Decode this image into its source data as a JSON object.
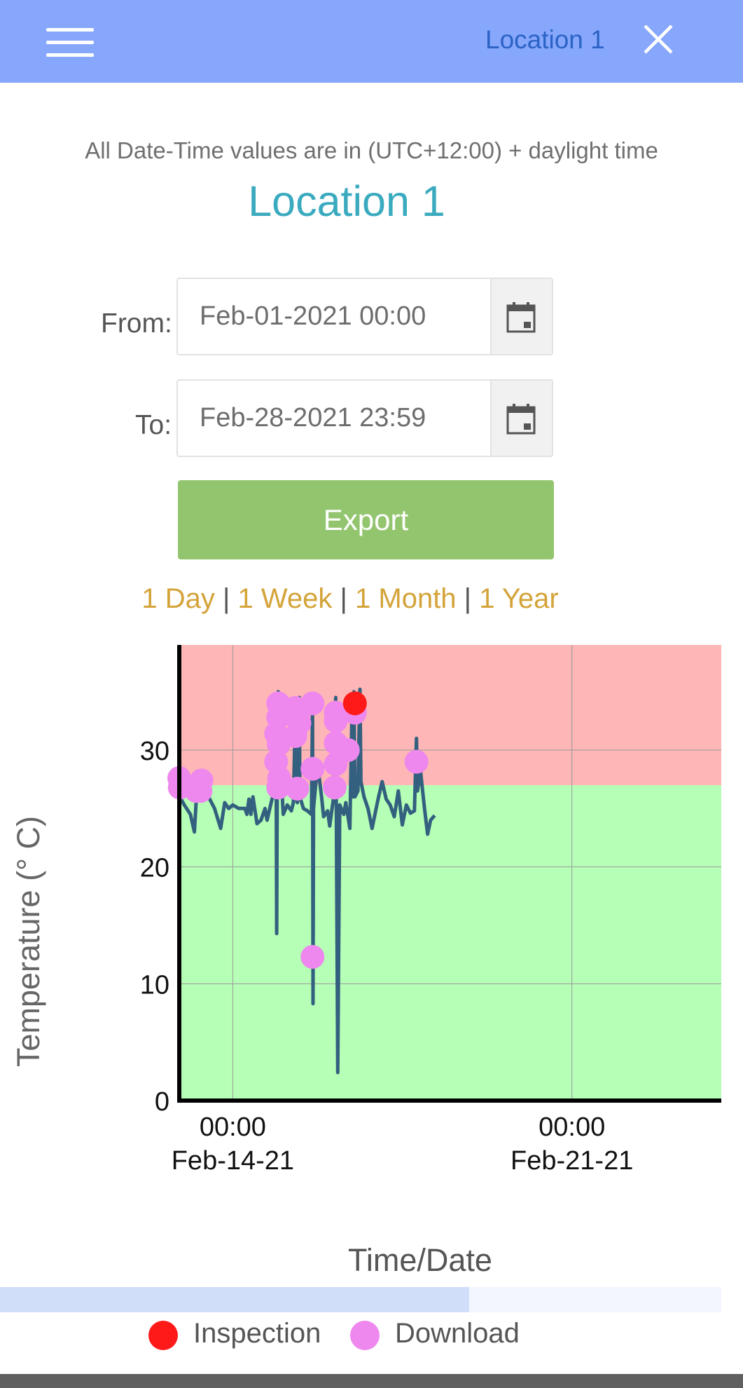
{
  "header": {
    "title": "Location 1",
    "menu_icon": "hamburger-menu-icon",
    "close_icon": "close-icon",
    "background": "#86a7fb"
  },
  "timezone_note": "All Date-Time values are in (UTC+12:00) + daylight time",
  "page_title": "Location 1",
  "filters": {
    "from_label": "From:",
    "from_value": "Feb-01-2021 00:00",
    "to_label": "To:",
    "to_value": "Feb-28-2021 23:59",
    "calendar_icon": "calendar-icon"
  },
  "export_label": "Export",
  "range_options": [
    "1 Day",
    "1 Week",
    "1 Month",
    "1 Year"
  ],
  "range_separator": "|",
  "colors": {
    "accent": "#3aaabf",
    "export_button": "#93c56f",
    "range_links": "#d4a339",
    "alarm_zone": "#ffb6b6",
    "ok_zone": "#b6ffb6",
    "series_line": "#33607f",
    "inspection": "#ff1a1a",
    "download": "#ee88ee"
  },
  "chart_data": {
    "type": "line",
    "ylabel": "Temperature (° C)",
    "xlabel": "Time/Date",
    "ylim": [
      0,
      39
    ],
    "yticks": [
      0,
      10,
      20,
      30
    ],
    "xlim": [
      "2021-02-12T21:30",
      "2021-02-24T02:00"
    ],
    "xticks": [
      {
        "value": "2021-02-14T00:00",
        "time": "00:00",
        "date": "Feb-14-21"
      },
      {
        "value": "2021-02-21T00:00",
        "time": "00:00",
        "date": "Feb-21-21"
      }
    ],
    "grid": true,
    "threshold_bands": [
      {
        "from": 27,
        "to": 39,
        "meaning": "above limit",
        "color": "#ffb6b6"
      },
      {
        "from": 0,
        "to": 27,
        "meaning": "within limit",
        "color": "#b6ffb6"
      }
    ],
    "series": [
      {
        "points": [
          [
            "2021-02-12T21:30",
            34
          ],
          [
            "2021-02-12T21:45",
            26
          ],
          [
            "2021-02-13T00:00",
            25.3
          ],
          [
            "2021-02-13T03:00",
            24.5
          ],
          [
            "2021-02-13T05:00",
            23
          ],
          [
            "2021-02-13T06:00",
            26
          ],
          [
            "2021-02-13T08:00",
            26.5
          ],
          [
            "2021-02-13T10:00",
            27.4
          ],
          [
            "2021-02-13T12:00",
            26
          ],
          [
            "2021-02-13T15:00",
            25
          ],
          [
            "2021-02-13T18:00",
            23.3
          ],
          [
            "2021-02-13T20:00",
            25.5
          ],
          [
            "2021-02-13T22:00",
            25
          ],
          [
            "2021-02-14T00:00",
            25.3
          ],
          [
            "2021-02-14T03:00",
            25
          ],
          [
            "2021-02-14T06:00",
            25
          ],
          [
            "2021-02-14T07:00",
            24.5
          ],
          [
            "2021-02-14T08:00",
            25.8
          ],
          [
            "2021-02-14T09:00",
            24.5
          ],
          [
            "2021-02-14T10:00",
            26
          ],
          [
            "2021-02-14T12:00",
            23.7
          ],
          [
            "2021-02-14T14:00",
            24
          ],
          [
            "2021-02-14T16:00",
            25
          ],
          [
            "2021-02-14T17:00",
            24
          ],
          [
            "2021-02-14T19:00",
            25.5
          ],
          [
            "2021-02-14T20:30",
            26.5
          ],
          [
            "2021-02-14T21:30",
            28.5
          ],
          [
            "2021-02-14T21:45",
            14.3
          ],
          [
            "2021-02-14T22:00",
            26
          ],
          [
            "2021-02-14T22:30",
            35
          ],
          [
            "2021-02-14T23:00",
            31
          ],
          [
            "2021-02-15T01:00",
            24.5
          ],
          [
            "2021-02-15T03:00",
            25.3
          ],
          [
            "2021-02-15T05:00",
            24.8
          ],
          [
            "2021-02-15T06:00",
            25.5
          ],
          [
            "2021-02-15T07:00",
            33
          ],
          [
            "2021-02-15T07:15",
            26
          ],
          [
            "2021-02-15T08:00",
            25.5
          ],
          [
            "2021-02-15T09:00",
            34.5
          ],
          [
            "2021-02-15T09:15",
            26
          ],
          [
            "2021-02-15T11:00",
            25
          ],
          [
            "2021-02-15T13:00",
            24.8
          ],
          [
            "2021-02-15T15:00",
            24.5
          ],
          [
            "2021-02-15T15:30",
            34
          ],
          [
            "2021-02-15T15:45",
            8.3
          ],
          [
            "2021-02-15T16:00",
            25
          ],
          [
            "2021-02-15T18:00",
            28.8
          ],
          [
            "2021-02-15T20:00",
            26
          ],
          [
            "2021-02-15T21:00",
            24.3
          ],
          [
            "2021-02-15T23:00",
            24.8
          ],
          [
            "2021-02-16T00:00",
            23.5
          ],
          [
            "2021-02-16T02:00",
            26
          ],
          [
            "2021-02-16T03:00",
            34.5
          ],
          [
            "2021-02-16T04:00",
            2.4
          ],
          [
            "2021-02-16T05:00",
            25.3
          ],
          [
            "2021-02-16T07:00",
            24.5
          ],
          [
            "2021-02-16T08:00",
            25.5
          ],
          [
            "2021-02-16T10:00",
            23.3
          ],
          [
            "2021-02-16T11:00",
            33
          ],
          [
            "2021-02-16T11:30",
            26
          ],
          [
            "2021-02-16T12:00",
            35
          ],
          [
            "2021-02-16T12:30",
            26
          ],
          [
            "2021-02-16T14:00",
            26.5
          ],
          [
            "2021-02-16T15:00",
            35.2
          ],
          [
            "2021-02-16T15:30",
            27.3
          ],
          [
            "2021-02-16T17:00",
            26
          ],
          [
            "2021-02-16T19:00",
            25
          ],
          [
            "2021-02-16T21:00",
            23.3
          ],
          [
            "2021-02-17T00:00",
            25.8
          ],
          [
            "2021-02-17T02:00",
            27.3
          ],
          [
            "2021-02-17T04:00",
            25.8
          ],
          [
            "2021-02-17T06:00",
            25.3
          ],
          [
            "2021-02-17T08:00",
            24.3
          ],
          [
            "2021-02-17T10:00",
            26.5
          ],
          [
            "2021-02-17T12:00",
            23.6
          ],
          [
            "2021-02-17T14:00",
            25.3
          ],
          [
            "2021-02-17T16:00",
            24.6
          ],
          [
            "2021-02-17T18:00",
            24.8
          ],
          [
            "2021-02-17T19:00",
            31
          ],
          [
            "2021-02-17T19:30",
            26.5
          ],
          [
            "2021-02-17T21:00",
            28.2
          ],
          [
            "2021-02-17T23:00",
            25
          ],
          [
            "2021-02-18T00:30",
            22.8
          ],
          [
            "2021-02-18T02:00",
            24
          ],
          [
            "2021-02-18T04:00",
            24.4
          ]
        ]
      }
    ],
    "markers": [
      {
        "series": "Inspection",
        "x": "2021-02-16T12:30",
        "y": 34
      },
      {
        "series": "Download",
        "x": "2021-02-12T21:30",
        "y": 27.6
      },
      {
        "series": "Download",
        "x": "2021-02-12T21:45",
        "y": 26.8
      },
      {
        "series": "Download",
        "x": "2021-02-13T06:00",
        "y": 26.5
      },
      {
        "series": "Download",
        "x": "2021-02-13T08:00",
        "y": 26.5
      },
      {
        "series": "Download",
        "x": "2021-02-13T08:30",
        "y": 27.4
      },
      {
        "series": "Download",
        "x": "2021-02-14T21:30",
        "y": 29
      },
      {
        "series": "Download",
        "x": "2021-02-14T21:30",
        "y": 31.4
      },
      {
        "series": "Download",
        "x": "2021-02-14T22:30",
        "y": 34
      },
      {
        "series": "Download",
        "x": "2021-02-14T22:30",
        "y": 32.8
      },
      {
        "series": "Download",
        "x": "2021-02-14T22:45",
        "y": 30.5
      },
      {
        "series": "Download",
        "x": "2021-02-14T22:30",
        "y": 26.8
      },
      {
        "series": "Download",
        "x": "2021-02-14T23:00",
        "y": 27.6
      },
      {
        "series": "Download",
        "x": "2021-02-15T07:00",
        "y": 33.6
      },
      {
        "series": "Download",
        "x": "2021-02-15T07:00",
        "y": 31.2
      },
      {
        "series": "Download",
        "x": "2021-02-15T09:00",
        "y": 33.4
      },
      {
        "series": "Download",
        "x": "2021-02-15T09:00",
        "y": 32.3
      },
      {
        "series": "Download",
        "x": "2021-02-15T08:00",
        "y": 26.7
      },
      {
        "series": "Download",
        "x": "2021-02-15T15:30",
        "y": 34
      },
      {
        "series": "Download",
        "x": "2021-02-15T15:30",
        "y": 28.4
      },
      {
        "series": "Download",
        "x": "2021-02-15T15:30",
        "y": 12.3
      },
      {
        "series": "Download",
        "x": "2021-02-16T03:00",
        "y": 33.2
      },
      {
        "series": "Download",
        "x": "2021-02-16T03:00",
        "y": 32.5
      },
      {
        "series": "Download",
        "x": "2021-02-16T03:00",
        "y": 30.6
      },
      {
        "series": "Download",
        "x": "2021-02-16T03:00",
        "y": 28.8
      },
      {
        "series": "Download",
        "x": "2021-02-16T02:30",
        "y": 26.8
      },
      {
        "series": "Download",
        "x": "2021-02-16T09:00",
        "y": 30
      },
      {
        "series": "Download",
        "x": "2021-02-16T12:30",
        "y": 33.2
      },
      {
        "series": "Download",
        "x": "2021-02-17T19:00",
        "y": 29
      }
    ],
    "legend": {
      "position": "bottom",
      "entries": [
        {
          "label": "Inspection",
          "color": "#ff1a1a"
        },
        {
          "label": "Download",
          "color": "#ee88ee"
        }
      ]
    }
  },
  "scrollbar": {
    "thumb_fraction": 0.65
  }
}
